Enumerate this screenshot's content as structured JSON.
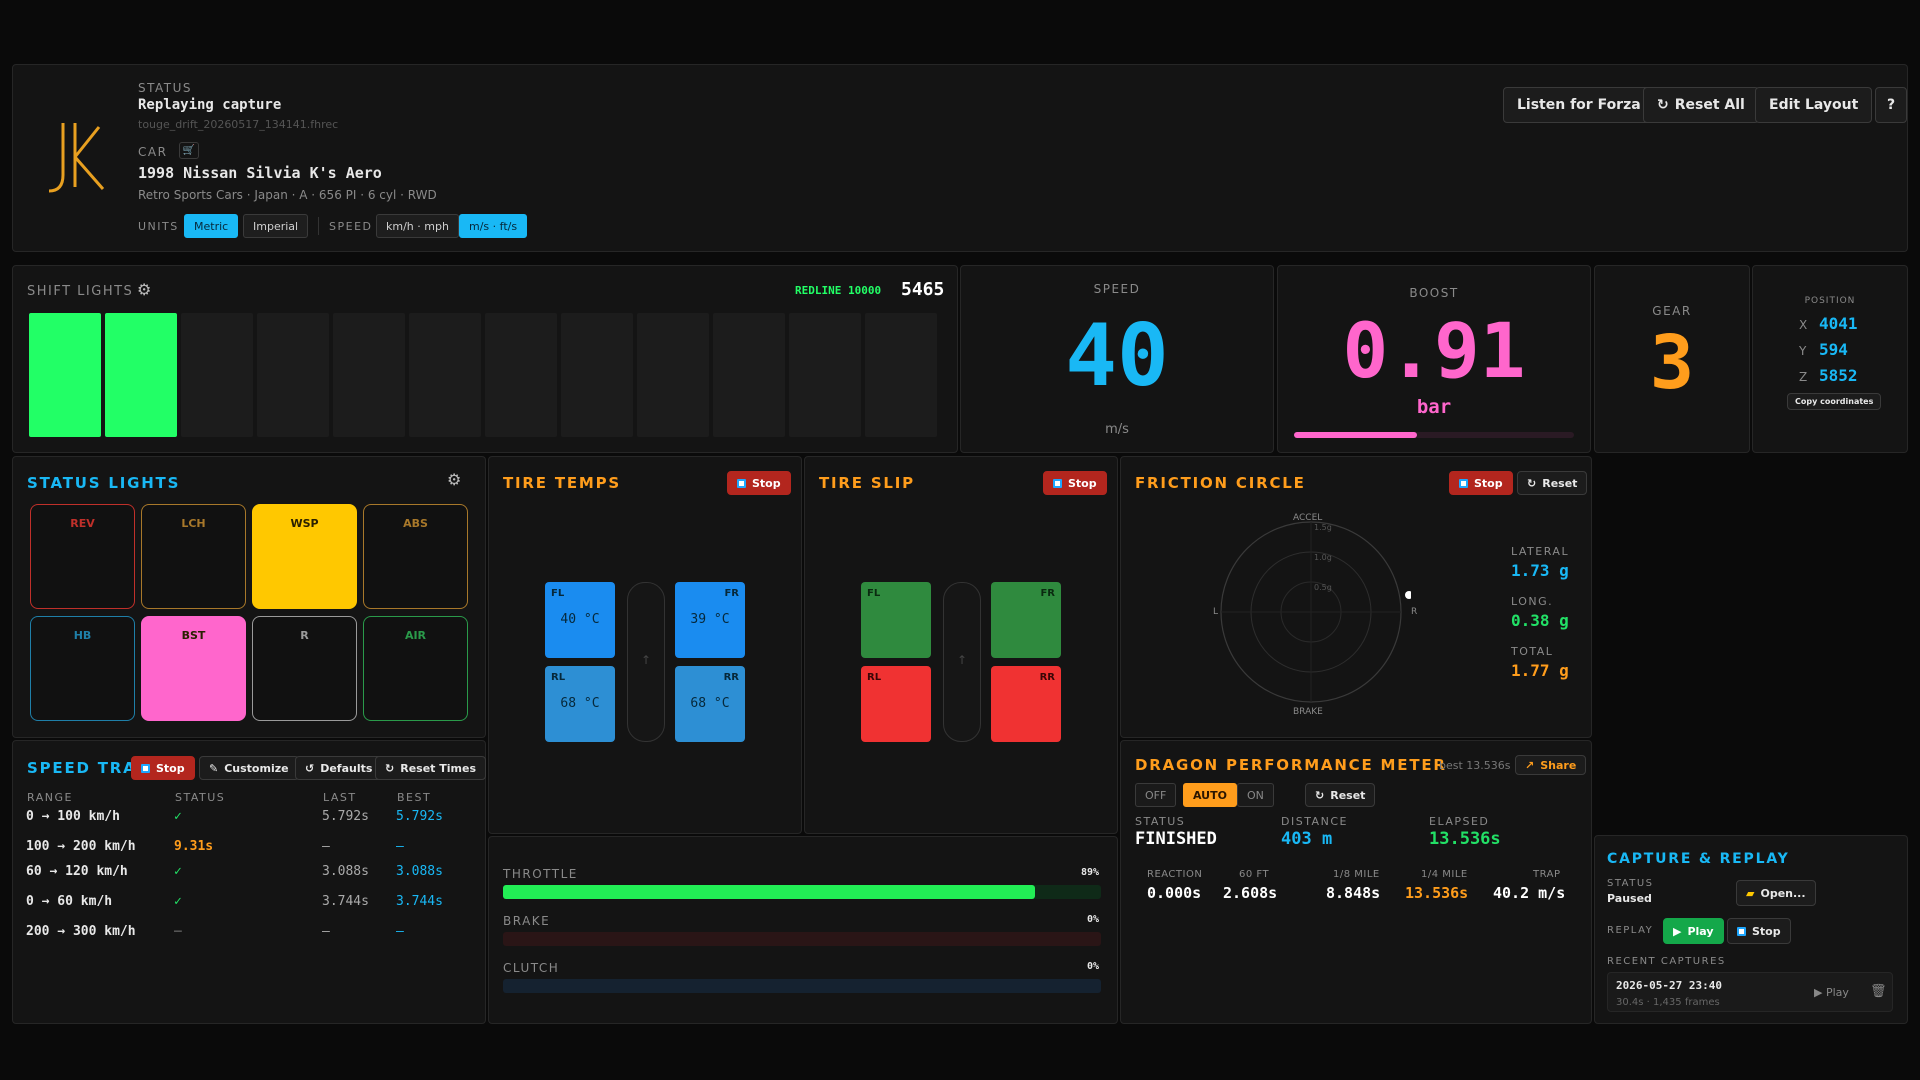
{
  "header": {
    "status_label": "STATUS",
    "status": "Replaying capture",
    "file": "touge_drift_20260517_134141.fhrec",
    "car_label": "CAR",
    "car_name": "1998 Nissan Silvia K's Aero",
    "car_details": "Retro Sports Cars · Japan · A · 656 PI · 6 cyl · RWD",
    "units_label": "UNITS",
    "metric": "Metric",
    "imperial": "Imperial",
    "speed_label": "SPEED",
    "speed_kmh": "km/h · mph",
    "speed_ms": "m/s · ft/s",
    "btn_listen": "Listen for Forza",
    "btn_reset_all": "Reset All",
    "btn_edit_layout": "Edit Layout",
    "btn_help": "?"
  },
  "shift": {
    "title": "SHIFT LIGHTS",
    "redline": "REDLINE 10000",
    "rpm": "5465",
    "lit": 2,
    "total": 12,
    "color": "#22ff66"
  },
  "speed": {
    "label": "SPEED",
    "value": "40",
    "unit": "m/s"
  },
  "boost": {
    "label": "BOOST",
    "value": "0.91",
    "unit": "bar",
    "fill": 0.44
  },
  "gear": {
    "label": "GEAR",
    "value": "3"
  },
  "position": {
    "label": "POSITION",
    "x_label": "X",
    "x": "4041",
    "y_label": "Y",
    "y": "594",
    "z_label": "Z",
    "z": "5852",
    "copy": "Copy coordinates"
  },
  "status_lights": {
    "title": "STATUS LIGHTS",
    "items": [
      {
        "label": "REV",
        "color": "#c0302a",
        "on": false
      },
      {
        "label": "LCH",
        "color": "#a8782a",
        "on": false
      },
      {
        "label": "WSP",
        "color": "#ffc800",
        "on": true
      },
      {
        "label": "ABS",
        "color": "#a8782a",
        "on": false
      },
      {
        "label": "HB",
        "color": "#1f7fa8",
        "on": false
      },
      {
        "label": "BST",
        "color": "#ff66cc",
        "on": true
      },
      {
        "label": "R",
        "color": "#9a9a9a",
        "on": false
      },
      {
        "label": "AIR",
        "color": "#2a9a4a",
        "on": false
      }
    ]
  },
  "tire_temps": {
    "title": "TIRE TEMPS",
    "stop": "Stop",
    "fl_label": "FL",
    "fl": "40 °C",
    "fr_label": "FR",
    "fr": "39 °C",
    "rl_label": "RL",
    "rl": "68 °C",
    "rr_label": "RR",
    "rr": "68 °C",
    "arrow": "↑"
  },
  "tire_slip": {
    "title": "TIRE SLIP",
    "stop": "Stop",
    "fl": "FL",
    "fr": "FR",
    "rl": "RL",
    "rr": "RR",
    "arrow": "↑"
  },
  "friction": {
    "title": "FRICTION CIRCLE",
    "stop": "Stop",
    "reset": "Reset",
    "accel": "ACCEL",
    "brake": "BRAKE",
    "l": "L",
    "r": "R",
    "ring1": "1.5g",
    "ring2": "1.0g",
    "ring3": "0.5g",
    "lateral_label": "LATERAL",
    "lateral": "1.73 g",
    "long_label": "LONG.",
    "long": "0.38 g",
    "total_label": "TOTAL",
    "total": "1.77 g"
  },
  "speed_trap": {
    "title": "SPEED TRAP",
    "stop": "Stop",
    "customize": "Customize",
    "defaults": "Defaults",
    "reset_times": "Reset Times",
    "col_range": "RANGE",
    "col_status": "STATUS",
    "col_last": "LAST",
    "col_best": "BEST",
    "rows": [
      {
        "range": "0 → 100 km/h",
        "status": "✓",
        "last": "5.792s",
        "best": "5.792s"
      },
      {
        "range": "100 → 200 km/h",
        "status": "9.31s",
        "last": "–",
        "best": "–"
      },
      {
        "range": "60 → 120 km/h",
        "status": "✓",
        "last": "3.088s",
        "best": "3.088s"
      },
      {
        "range": "0 → 60 km/h",
        "status": "✓",
        "last": "3.744s",
        "best": "3.744s"
      },
      {
        "range": "200 → 300 km/h",
        "status": "–",
        "last": "–",
        "best": "–"
      }
    ]
  },
  "pedals": {
    "throttle_label": "THROTTLE",
    "throttle": "89%",
    "throttle_frac": 0.89,
    "brake_label": "BRAKE",
    "brake": "0%",
    "brake_frac": 0,
    "clutch_label": "CLUTCH",
    "clutch": "0%",
    "clutch_frac": 0
  },
  "dragon": {
    "title": "DRAGON PERFORMANCE METER",
    "best": "best 13.536s",
    "share": "Share",
    "off": "OFF",
    "auto": "AUTO",
    "on": "ON",
    "reset": "Reset",
    "status_label": "STATUS",
    "status": "FINISHED",
    "distance_label": "DISTANCE",
    "distance": "403 m",
    "elapsed_label": "ELAPSED",
    "elapsed": "13.536s",
    "reaction_label": "REACTION",
    "reaction": "0.000s",
    "ft60_label": "60 FT",
    "ft60": "2.608s",
    "eighth_label": "1/8 MILE",
    "eighth": "8.848s",
    "quarter_label": "1/4 MILE",
    "quarter": "13.536s",
    "trap_label": "TRAP",
    "trap": "40.2 m/s"
  },
  "capture": {
    "title": "CAPTURE & REPLAY",
    "status_label": "STATUS",
    "status": "Paused",
    "open": "Open...",
    "replay_label": "REPLAY",
    "play": "Play",
    "stop": "Stop",
    "recent_label": "RECENT CAPTURES",
    "recent_date": "2026-05-27 23:40",
    "recent_meta": "30.4s · 1,435 frames",
    "recent_play": "Play"
  }
}
